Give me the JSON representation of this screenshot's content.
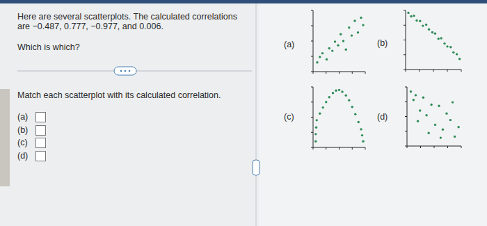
{
  "question": {
    "prompt": [
      "Here are several scatterplots. The calculated correlations",
      "are −0.487, 0.777, −0.977, and 0.006."
    ],
    "ask": "Which is which?",
    "instruction": "Match each scatterplot with its calculated correlation.",
    "answer_labels": [
      "(a)",
      "(b)",
      "(c)",
      "(d)"
    ]
  },
  "chart_data": [
    {
      "type": "scatter",
      "title": "(a)",
      "color": "#2e8b57",
      "marker": "circle",
      "tick_labels": false,
      "x": [
        0.8,
        1.3,
        1.8,
        2.6,
        3.1,
        3.7,
        4.2,
        4.8,
        5.3,
        5.8,
        6.3,
        6.9,
        7.4,
        8.0,
        8.6,
        9.2,
        9.6
      ],
      "values": [
        1.5,
        2.4,
        3.0,
        2.0,
        3.8,
        3.4,
        4.9,
        4.3,
        6.1,
        5.0,
        3.6,
        7.2,
        5.9,
        8.3,
        6.4,
        8.8,
        7.6
      ],
      "xlim": [
        0,
        10
      ],
      "ylim": [
        0,
        10
      ],
      "xticks": [
        0,
        2.5,
        5,
        7.5,
        10
      ],
      "yticks": [
        0,
        2.5,
        5,
        7.5,
        10
      ]
    },
    {
      "type": "scatter",
      "title": "(b)",
      "color": "#2e8b57",
      "marker": "circle",
      "tick_labels": false,
      "x": [
        0.5,
        1.0,
        1.5,
        2.0,
        2.6,
        3.1,
        3.7,
        4.2,
        4.8,
        5.3,
        5.9,
        6.4,
        7.0,
        7.5,
        8.1,
        8.6,
        9.2,
        9.7
      ],
      "values": [
        9.6,
        9.0,
        9.1,
        8.3,
        8.2,
        7.4,
        7.6,
        6.8,
        6.3,
        6.1,
        5.2,
        5.3,
        4.4,
        3.9,
        3.8,
        2.9,
        2.6,
        1.8
      ],
      "xlim": [
        0,
        10
      ],
      "ylim": [
        0,
        10
      ],
      "xticks": [
        0,
        2.5,
        5,
        7.5,
        10
      ],
      "yticks": [
        0,
        2.5,
        5,
        7.5,
        10
      ]
    },
    {
      "type": "scatter",
      "title": "(c)",
      "color": "#2e8b57",
      "marker": "circle",
      "tick_labels": false,
      "x": [
        0.5,
        0.5,
        0.6,
        0.7,
        1.3,
        1.9,
        2.5,
        3.1,
        3.8,
        4.4,
        5.0,
        5.6,
        6.3,
        6.9,
        7.5,
        8.1,
        8.7,
        9.2,
        9.4,
        9.6
      ],
      "values": [
        1.0,
        2.2,
        3.3,
        4.5,
        5.6,
        6.6,
        7.5,
        8.3,
        9.0,
        9.4,
        9.5,
        9.2,
        8.6,
        7.8,
        6.7,
        5.5,
        4.2,
        3.0,
        2.0,
        1.0
      ],
      "xlim": [
        0,
        10
      ],
      "ylim": [
        0,
        10
      ],
      "xticks": [
        0,
        2.5,
        5,
        7.5,
        10
      ],
      "yticks": [
        0,
        2.5,
        5,
        7.5,
        10
      ]
    },
    {
      "type": "scatter",
      "title": "(d)",
      "color": "#2e8b57",
      "marker": "circle",
      "tick_labels": false,
      "x": [
        0.7,
        1.2,
        1.6,
        2.4,
        3.0,
        3.6,
        4.5,
        5.2,
        5.9,
        6.6,
        7.3,
        8.0,
        8.8,
        9.5,
        2.0,
        4.0,
        6.2,
        8.4
      ],
      "values": [
        9.2,
        7.8,
        8.6,
        6.0,
        8.2,
        5.2,
        7.0,
        3.6,
        6.8,
        2.8,
        5.5,
        4.4,
        1.6,
        3.2,
        4.2,
        2.2,
        1.4,
        7.4
      ],
      "xlim": [
        0,
        10
      ],
      "ylim": [
        0,
        10
      ],
      "xticks": [
        0,
        2.5,
        5,
        7.5,
        10
      ],
      "yticks": [
        0,
        2.5,
        5,
        7.5,
        10
      ]
    }
  ]
}
